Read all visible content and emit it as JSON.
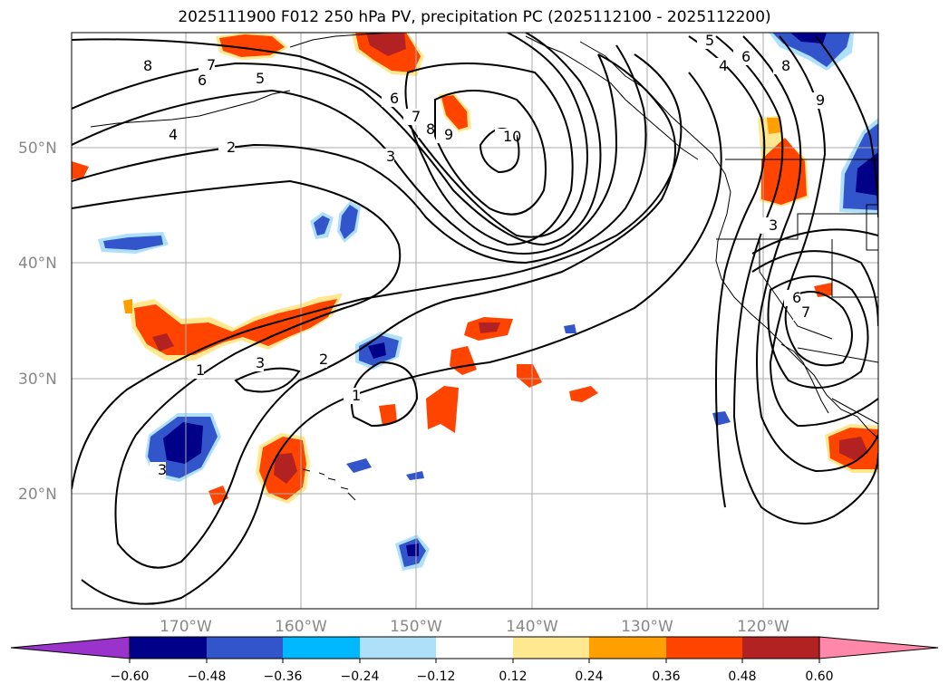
{
  "title": "2025111900 F012 250 hPa PV, precipitation PC (2025112100 - 2025112200)",
  "lat_labels": [
    "50°N",
    "40°N",
    "30°N",
    "20°N"
  ],
  "lon_labels": [
    "170°W",
    "160°W",
    "150°W",
    "140°W",
    "130°W",
    "120°W"
  ],
  "colorbar": {
    "ticks": [
      "−0.60",
      "−0.48",
      "−0.36",
      "−0.24",
      "−0.12",
      "0.12",
      "0.24",
      "0.36",
      "0.48",
      "0.60"
    ],
    "colors": [
      "#9933cc",
      "#000088",
      "#3355cc",
      "#00b8ff",
      "#aee0fa",
      "#ffffff",
      "#ffe890",
      "#ffa000",
      "#ff4400",
      "#b22222",
      "#ff88aa"
    ]
  },
  "contour_labels": [
    "8",
    "7",
    "6",
    "5",
    "4",
    "2",
    "3",
    "6",
    "7",
    "8",
    "9",
    "10",
    "5",
    "6",
    "4",
    "8",
    "9",
    "3",
    "6",
    "7",
    "1",
    "3",
    "2",
    "1",
    "3"
  ]
}
